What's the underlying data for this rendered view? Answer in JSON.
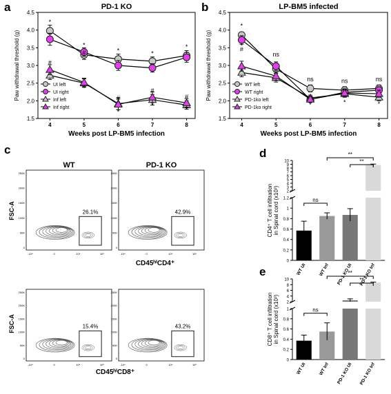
{
  "panel_labels": {
    "a": "a",
    "b": "b",
    "c": "c",
    "d": "d",
    "e": "e"
  },
  "chart_data": [
    {
      "panel": "a",
      "type": "line",
      "title": "PD-1 KO",
      "xlabel": "Weeks post LP-BM5 infection",
      "ylabel": "Paw withdrawal threshold (g)",
      "x": [
        4,
        5,
        6,
        7,
        8
      ],
      "xticks": [
        "4",
        "5",
        "6",
        "7",
        "8"
      ],
      "ylim": [
        1.5,
        4.5
      ],
      "yticks": [
        "1.5",
        "2.0",
        "2.5",
        "3.0",
        "3.5",
        "4.0",
        "4.5"
      ],
      "legend_position": "bottom-left",
      "series": [
        {
          "name": "UI left",
          "marker": "circle",
          "fill": "#c8c8c8",
          "values": [
            3.98,
            3.3,
            3.18,
            3.12,
            3.28
          ],
          "errors": [
            0.16,
            0.13,
            0.14,
            0.12,
            0.14
          ]
        },
        {
          "name": "UI right",
          "marker": "circle",
          "fill": "#e040e8",
          "values": [
            3.74,
            3.38,
            3.0,
            2.93,
            3.23
          ],
          "errors": [
            0.17,
            0.12,
            0.14,
            0.12,
            0.14
          ]
        },
        {
          "name": "Inf left",
          "marker": "triangle",
          "fill": "#c8c8c8",
          "values": [
            2.72,
            2.5,
            1.92,
            2.03,
            1.88
          ],
          "errors": [
            0.12,
            0.12,
            0.17,
            0.15,
            0.12
          ]
        },
        {
          "name": "Inf right",
          "marker": "triangle",
          "fill": "#e040e8",
          "values": [
            2.88,
            2.52,
            1.9,
            2.1,
            1.94
          ],
          "errors": [
            0.14,
            0.12,
            0.15,
            0.15,
            0.12
          ]
        }
      ],
      "annotations": [
        {
          "x": 4,
          "y": 4.17,
          "text": "*"
        },
        {
          "x": 5,
          "y": 3.52,
          "text": "*"
        },
        {
          "x": 6,
          "y": 3.36,
          "text": "*"
        },
        {
          "x": 7,
          "y": 3.28,
          "text": "*"
        },
        {
          "x": 8,
          "y": 3.47,
          "text": "*"
        },
        {
          "x": 4,
          "y": 3.02,
          "text": "#"
        },
        {
          "x": 5,
          "y": 3.3,
          "text": "#"
        },
        {
          "x": 6,
          "y": 2.02,
          "text": "#"
        },
        {
          "x": 7,
          "y": 2.23,
          "text": "#"
        },
        {
          "x": 8,
          "y": 2.06,
          "text": "#"
        },
        {
          "x": 5,
          "y": 2.3,
          "text": "*"
        },
        {
          "x": 6,
          "y": 1.63,
          "text": "*"
        },
        {
          "x": 7,
          "y": 1.82,
          "text": "*"
        },
        {
          "x": 8,
          "y": 1.7,
          "text": "*"
        }
      ]
    },
    {
      "panel": "b",
      "type": "line",
      "title": "LP-BM5 infected",
      "xlabel": "Weeks post LP-BM5 infection",
      "ylabel": "Paw withdrawal threshold (g)",
      "x": [
        4,
        5,
        6,
        7,
        8
      ],
      "xticks": [
        "4",
        "5",
        "6",
        "7",
        "8"
      ],
      "ylim": [
        1.5,
        4.5
      ],
      "yticks": [
        "1.5",
        "2.0",
        "2.5",
        "3.0",
        "3.5",
        "4.0",
        "4.5"
      ],
      "legend_position": "bottom-left",
      "series": [
        {
          "name": "WT left",
          "marker": "circle",
          "fill": "#c8c8c8",
          "values": [
            3.86,
            2.9,
            2.35,
            2.3,
            2.35
          ],
          "errors": [
            0.08,
            0.12,
            0.1,
            0.1,
            0.1
          ]
        },
        {
          "name": "WT right",
          "marker": "circle",
          "fill": "#e040e8",
          "values": [
            3.72,
            2.98,
            2.04,
            2.24,
            2.3
          ],
          "errors": [
            0.12,
            0.12,
            0.08,
            0.1,
            0.1
          ]
        },
        {
          "name": "PD-1ko left",
          "marker": "triangle",
          "fill": "#c8c8c8",
          "values": [
            2.8,
            2.65,
            2.08,
            2.2,
            2.1
          ],
          "errors": [
            0.12,
            0.12,
            0.08,
            0.1,
            0.1
          ]
        },
        {
          "name": "PD-1ko right",
          "marker": "triangle",
          "fill": "#e040e8",
          "values": [
            2.98,
            2.7,
            2.04,
            2.22,
            2.2
          ],
          "errors": [
            0.14,
            0.12,
            0.08,
            0.1,
            0.1
          ]
        }
      ],
      "annotations": [
        {
          "x": 4,
          "y": 4.06,
          "text": "*"
        },
        {
          "x": 4,
          "y": 3.5,
          "text": "*"
        },
        {
          "x": 4,
          "y": 3.4,
          "text": "#"
        },
        {
          "x": 5,
          "y": 3.25,
          "text": "ns"
        },
        {
          "x": 6,
          "y": 2.55,
          "text": "ns"
        },
        {
          "x": 7,
          "y": 2.5,
          "text": "ns"
        },
        {
          "x": 8,
          "y": 2.55,
          "text": "ns"
        },
        {
          "x": 6,
          "y": 1.83,
          "text": "*"
        },
        {
          "x": 7,
          "y": 1.9,
          "text": "*"
        },
        {
          "x": 8,
          "y": 1.85,
          "text": "*"
        }
      ]
    },
    {
      "panel": "d",
      "type": "bar",
      "categories": [
        "WT UI",
        "WT Inf",
        "PD-1 KO UI",
        "PD-1 KO Inf"
      ],
      "values": [
        0.57,
        0.85,
        0.87,
        8.8
      ],
      "errors": [
        0.18,
        0.06,
        0.12,
        0.25
      ],
      "colors": [
        "#000000",
        "#999999",
        "#777777",
        "#d9d9d9"
      ],
      "ylabel_line1": "CD4⁺ T cell infiltration",
      "ylabel_line2": "in Spinal cord (x10³)",
      "yticks_low": [
        "0",
        "0.2",
        "0.4",
        "0.6",
        "0.8",
        "1",
        "1.2"
      ],
      "yticks_high": [
        "2",
        "3",
        "4",
        "5",
        "6",
        "7",
        "8",
        "9",
        "10"
      ],
      "axis_break_between": [
        1.2,
        2
      ],
      "significance": [
        {
          "pair": [
            "WT UI",
            "WT Inf"
          ],
          "text": "ns"
        },
        {
          "pair": [
            "WT Inf",
            "PD-1 KO Inf"
          ],
          "text": "**"
        },
        {
          "pair": [
            "PD-1 KO UI",
            "PD-1 KO Inf"
          ],
          "text": "**"
        }
      ]
    },
    {
      "panel": "e",
      "type": "bar",
      "categories": [
        "WT UI",
        "WT Inf",
        "PD-1 KO UI",
        "PD-1 KO Inf"
      ],
      "values": [
        0.37,
        0.55,
        2.5,
        8.7
      ],
      "errors": [
        0.11,
        0.17,
        0.5,
        0.2
      ],
      "colors": [
        "#000000",
        "#999999",
        "#777777",
        "#d9d9d9"
      ],
      "ylabel_line1": "CD8⁺ T cell infiltration",
      "ylabel_line2": "in Spinal cord (x10³)",
      "yticks_low": [
        "0",
        "0.2",
        "0.4",
        "0.6",
        "0.8",
        "1"
      ],
      "yticks_high": [
        "2",
        "4",
        "6",
        "8",
        "10"
      ],
      "axis_break_between": [
        1,
        2
      ],
      "significance": [
        {
          "pair": [
            "WT UI",
            "WT Inf"
          ],
          "text": "ns"
        },
        {
          "pair": [
            "WT Inf",
            "PD-1 KO Inf"
          ],
          "text": "**"
        },
        {
          "pair": [
            "PD-1 KO UI",
            "PD-1 KO Inf"
          ],
          "text": "**"
        }
      ]
    }
  ],
  "flow_panel": {
    "panel": "c",
    "col_headers": [
      "WT",
      "PD-1 KO"
    ],
    "y_axis_label": "FSC-A",
    "y_ticks": [
      "250K",
      "200K",
      "150K",
      "100K",
      "50K",
      "0"
    ],
    "x_ticks": [
      "-10⁴",
      "0",
      "10⁴",
      "10⁵"
    ],
    "rows": [
      {
        "gate_label": "CD45ʰⁱCD4⁺",
        "percentages": [
          "26.1%",
          "42.9%"
        ]
      },
      {
        "gate_label": "CD45ʰⁱCD8⁺",
        "percentages": [
          "15.4%",
          "43.2%"
        ]
      }
    ]
  }
}
